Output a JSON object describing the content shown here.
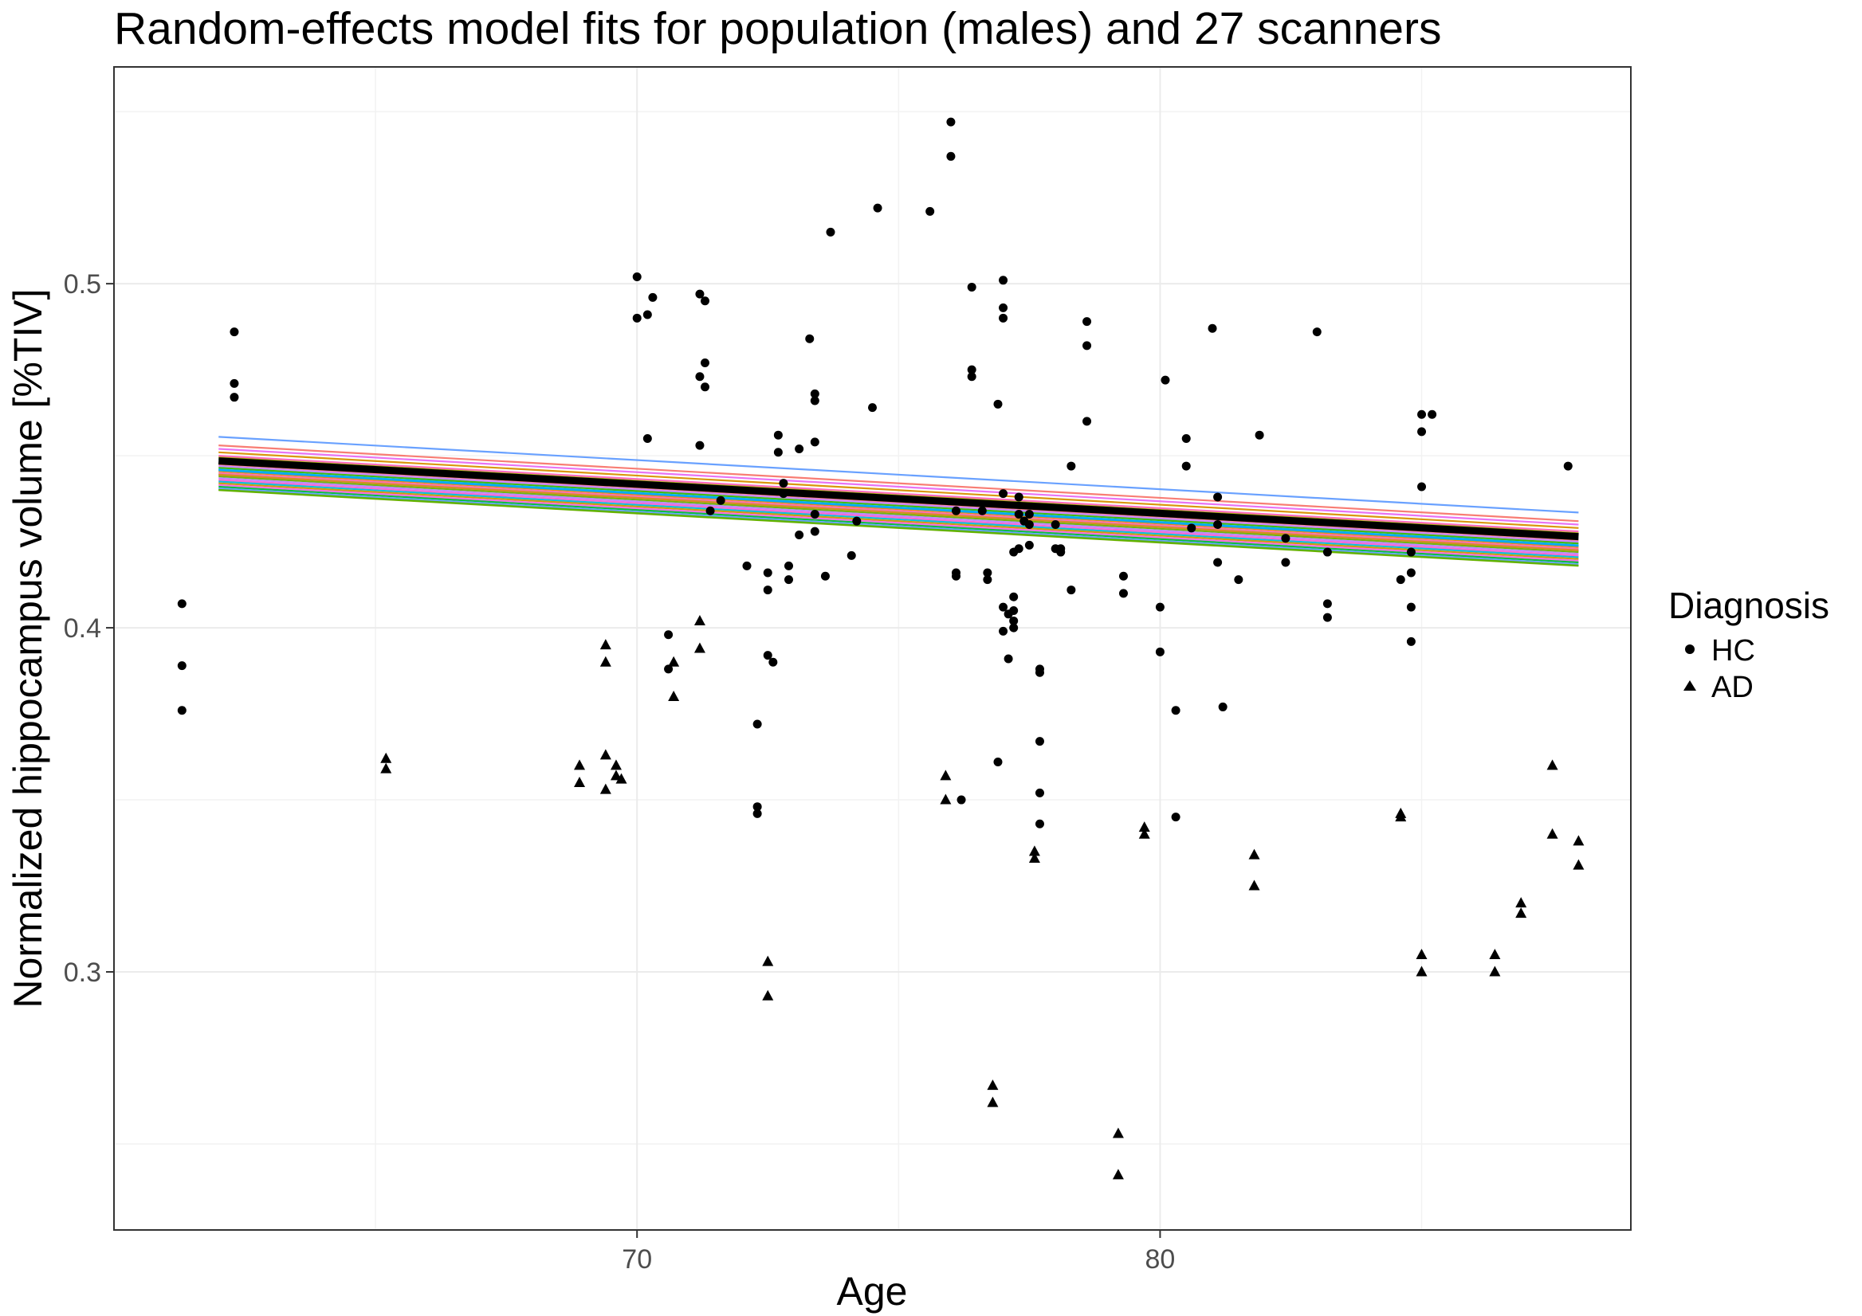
{
  "chart_data": {
    "type": "scatter",
    "title": "Random-effects model fits for population (males) and 27 scanners",
    "xlabel": "Age",
    "ylabel": "Normalized hippocampus volume [%TIV]",
    "xlim": [
      60,
      89
    ],
    "ylim": [
      0.225,
      0.563
    ],
    "x_ticks": [
      70,
      80
    ],
    "x_tick_labels": [
      "70",
      "80"
    ],
    "y_ticks": [
      0.3,
      0.4,
      0.5
    ],
    "y_tick_labels": [
      "0.3",
      "0.4",
      "0.5"
    ],
    "grid": true,
    "legend": {
      "title": "Diagnosis",
      "position": "right",
      "entries": [
        {
          "label": "HC",
          "shape": "circle"
        },
        {
          "label": "AD",
          "shape": "triangle"
        }
      ]
    },
    "population_fit": {
      "name": "population",
      "color": "#000000",
      "x": [
        62,
        88
      ],
      "y": [
        0.4485,
        0.4265
      ]
    },
    "scanner_fits": [
      {
        "name": "scanner 1",
        "color": "#619CFF",
        "y": [
          0.4555,
          0.4335
        ]
      },
      {
        "name": "scanner 2",
        "color": "#F8766D",
        "y": [
          0.453,
          0.431
        ]
      },
      {
        "name": "scanner 3",
        "color": "#E76BF3",
        "y": [
          0.452,
          0.43
        ]
      },
      {
        "name": "scanner 4",
        "color": "#D89000",
        "y": [
          0.451,
          0.429
        ]
      },
      {
        "name": "scanner 5",
        "color": "#FF62BC",
        "y": [
          0.45,
          0.428
        ]
      },
      {
        "name": "scanner 6",
        "color": "#A3A500",
        "y": [
          0.4495,
          0.4275
        ]
      },
      {
        "name": "scanner 7",
        "color": "#00BF7D",
        "y": [
          0.449,
          0.427
        ]
      },
      {
        "name": "scanner 8",
        "color": "#9590FF",
        "y": [
          0.448,
          0.426
        ]
      },
      {
        "name": "scanner 9",
        "color": "#F8766D",
        "y": [
          0.4475,
          0.4255
        ]
      },
      {
        "name": "scanner 10",
        "color": "#C77CFF",
        "y": [
          0.447,
          0.425
        ]
      },
      {
        "name": "scanner 11",
        "color": "#39B600",
        "y": [
          0.4465,
          0.4245
        ]
      },
      {
        "name": "scanner 12",
        "color": "#00B0F6",
        "y": [
          0.446,
          0.424
        ]
      },
      {
        "name": "scanner 13",
        "color": "#E58700",
        "y": [
          0.4455,
          0.4235
        ]
      },
      {
        "name": "scanner 14",
        "color": "#FF67A4",
        "y": [
          0.445,
          0.423
        ]
      },
      {
        "name": "scanner 15",
        "color": "#00C0AF",
        "y": [
          0.4445,
          0.4225
        ]
      },
      {
        "name": "scanner 16",
        "color": "#6BB100",
        "y": [
          0.444,
          0.422
        ]
      },
      {
        "name": "scanner 17",
        "color": "#B983FF",
        "y": [
          0.4435,
          0.4215
        ]
      },
      {
        "name": "scanner 18",
        "color": "#FD61D1",
        "y": [
          0.443,
          0.421
        ]
      },
      {
        "name": "scanner 19",
        "color": "#00BCD8",
        "y": [
          0.4425,
          0.4205
        ]
      },
      {
        "name": "scanner 20",
        "color": "#C99800",
        "y": [
          0.442,
          0.42
        ]
      },
      {
        "name": "scanner 21",
        "color": "#F564E3",
        "y": [
          0.4415,
          0.4195
        ]
      },
      {
        "name": "scanner 22",
        "color": "#00BA38",
        "y": [
          0.441,
          0.419
        ]
      },
      {
        "name": "scanner 23",
        "color": "#619CFF",
        "y": [
          0.4405,
          0.4185
        ]
      },
      {
        "name": "scanner 24",
        "color": "#7CAE00",
        "y": [
          0.44,
          0.418
        ]
      },
      {
        "name": "scanner 25",
        "color": "#E7861B",
        "y": [
          0.4445,
          0.4225
        ]
      },
      {
        "name": "scanner 26",
        "color": "#00A9FF",
        "y": [
          0.4458,
          0.4238
        ]
      },
      {
        "name": "scanner 27",
        "color": "#5BB300",
        "y": [
          0.4401,
          0.4181
        ]
      }
    ],
    "series": [
      {
        "name": "HC",
        "shape": "circle",
        "points": [
          [
            61.3,
            0.407
          ],
          [
            61.3,
            0.389
          ],
          [
            61.3,
            0.376
          ],
          [
            62.3,
            0.486
          ],
          [
            62.3,
            0.471
          ],
          [
            62.3,
            0.467
          ],
          [
            70.0,
            0.502
          ],
          [
            70.0,
            0.49
          ],
          [
            70.2,
            0.491
          ],
          [
            70.3,
            0.496
          ],
          [
            70.2,
            0.455
          ],
          [
            70.6,
            0.398
          ],
          [
            70.6,
            0.388
          ],
          [
            71.2,
            0.497
          ],
          [
            71.3,
            0.495
          ],
          [
            71.3,
            0.477
          ],
          [
            71.2,
            0.473
          ],
          [
            71.3,
            0.47
          ],
          [
            71.2,
            0.453
          ],
          [
            71.4,
            0.434
          ],
          [
            71.6,
            0.437
          ],
          [
            72.1,
            0.418
          ],
          [
            72.3,
            0.372
          ],
          [
            72.3,
            0.348
          ],
          [
            72.3,
            0.346
          ],
          [
            72.5,
            0.392
          ],
          [
            72.6,
            0.39
          ],
          [
            72.5,
            0.416
          ],
          [
            72.5,
            0.411
          ],
          [
            72.7,
            0.456
          ],
          [
            72.7,
            0.451
          ],
          [
            72.8,
            0.442
          ],
          [
            72.8,
            0.439
          ],
          [
            72.9,
            0.418
          ],
          [
            72.9,
            0.414
          ],
          [
            73.1,
            0.427
          ],
          [
            73.1,
            0.452
          ],
          [
            73.3,
            0.484
          ],
          [
            73.4,
            0.468
          ],
          [
            73.4,
            0.466
          ],
          [
            73.4,
            0.454
          ],
          [
            73.4,
            0.433
          ],
          [
            73.4,
            0.428
          ],
          [
            73.6,
            0.415
          ],
          [
            73.7,
            0.515
          ],
          [
            74.1,
            0.421
          ],
          [
            74.2,
            0.431
          ],
          [
            74.5,
            0.464
          ],
          [
            74.6,
            0.522
          ],
          [
            75.6,
            0.521
          ],
          [
            76.0,
            0.547
          ],
          [
            76.0,
            0.537
          ],
          [
            76.1,
            0.434
          ],
          [
            76.1,
            0.416
          ],
          [
            76.1,
            0.415
          ],
          [
            76.2,
            0.35
          ],
          [
            76.4,
            0.499
          ],
          [
            76.4,
            0.475
          ],
          [
            76.4,
            0.473
          ],
          [
            76.6,
            0.434
          ],
          [
            76.7,
            0.416
          ],
          [
            76.7,
            0.414
          ],
          [
            76.9,
            0.465
          ],
          [
            76.9,
            0.361
          ],
          [
            77.0,
            0.501
          ],
          [
            77.0,
            0.493
          ],
          [
            77.0,
            0.49
          ],
          [
            77.0,
            0.439
          ],
          [
            77.0,
            0.406
          ],
          [
            77.0,
            0.399
          ],
          [
            77.1,
            0.391
          ],
          [
            77.1,
            0.404
          ],
          [
            77.2,
            0.409
          ],
          [
            77.2,
            0.405
          ],
          [
            77.2,
            0.402
          ],
          [
            77.2,
            0.4
          ],
          [
            77.2,
            0.422
          ],
          [
            77.3,
            0.423
          ],
          [
            77.3,
            0.438
          ],
          [
            77.3,
            0.433
          ],
          [
            77.4,
            0.431
          ],
          [
            77.5,
            0.433
          ],
          [
            77.5,
            0.43
          ],
          [
            77.5,
            0.424
          ],
          [
            77.7,
            0.388
          ],
          [
            77.7,
            0.387
          ],
          [
            77.7,
            0.367
          ],
          [
            77.7,
            0.352
          ],
          [
            77.7,
            0.343
          ],
          [
            78.0,
            0.423
          ],
          [
            78.1,
            0.423
          ],
          [
            78.1,
            0.422
          ],
          [
            78.0,
            0.43
          ],
          [
            78.3,
            0.447
          ],
          [
            78.3,
            0.411
          ],
          [
            78.6,
            0.489
          ],
          [
            78.6,
            0.482
          ],
          [
            78.6,
            0.46
          ],
          [
            79.3,
            0.415
          ],
          [
            79.3,
            0.41
          ],
          [
            80.0,
            0.406
          ],
          [
            80.0,
            0.393
          ],
          [
            80.1,
            0.472
          ],
          [
            80.3,
            0.376
          ],
          [
            80.3,
            0.345
          ],
          [
            80.5,
            0.455
          ],
          [
            80.5,
            0.447
          ],
          [
            80.6,
            0.429
          ],
          [
            81.0,
            0.487
          ],
          [
            81.1,
            0.438
          ],
          [
            81.1,
            0.43
          ],
          [
            81.1,
            0.419
          ],
          [
            81.2,
            0.377
          ],
          [
            81.5,
            0.414
          ],
          [
            81.9,
            0.456
          ],
          [
            82.4,
            0.426
          ],
          [
            82.4,
            0.419
          ],
          [
            83.0,
            0.486
          ],
          [
            83.2,
            0.422
          ],
          [
            83.2,
            0.407
          ],
          [
            83.2,
            0.403
          ],
          [
            84.6,
            0.414
          ],
          [
            84.8,
            0.422
          ],
          [
            84.8,
            0.416
          ],
          [
            84.8,
            0.406
          ],
          [
            84.8,
            0.396
          ],
          [
            85.0,
            0.462
          ],
          [
            85.0,
            0.457
          ],
          [
            85.0,
            0.441
          ],
          [
            85.2,
            0.462
          ],
          [
            87.8,
            0.447
          ]
        ]
      },
      {
        "name": "AD",
        "shape": "triangle",
        "points": [
          [
            65.2,
            0.362
          ],
          [
            65.2,
            0.359
          ],
          [
            68.9,
            0.36
          ],
          [
            68.9,
            0.355
          ],
          [
            69.4,
            0.395
          ],
          [
            69.4,
            0.39
          ],
          [
            69.4,
            0.363
          ],
          [
            69.4,
            0.353
          ],
          [
            69.6,
            0.36
          ],
          [
            69.6,
            0.357
          ],
          [
            69.7,
            0.356
          ],
          [
            70.7,
            0.39
          ],
          [
            70.7,
            0.38
          ],
          [
            71.2,
            0.402
          ],
          [
            71.2,
            0.394
          ],
          [
            72.5,
            0.303
          ],
          [
            72.5,
            0.293
          ],
          [
            75.9,
            0.357
          ],
          [
            75.9,
            0.35
          ],
          [
            76.8,
            0.267
          ],
          [
            76.8,
            0.262
          ],
          [
            77.6,
            0.335
          ],
          [
            77.6,
            0.333
          ],
          [
            79.2,
            0.253
          ],
          [
            79.2,
            0.241
          ],
          [
            79.7,
            0.342
          ],
          [
            79.7,
            0.34
          ],
          [
            81.8,
            0.334
          ],
          [
            81.8,
            0.325
          ],
          [
            84.6,
            0.346
          ],
          [
            84.6,
            0.345
          ],
          [
            85.0,
            0.305
          ],
          [
            85.0,
            0.3
          ],
          [
            86.4,
            0.305
          ],
          [
            86.4,
            0.3
          ],
          [
            86.9,
            0.32
          ],
          [
            86.9,
            0.317
          ],
          [
            87.5,
            0.36
          ],
          [
            87.5,
            0.34
          ],
          [
            88.0,
            0.338
          ],
          [
            88.0,
            0.331
          ]
        ]
      }
    ]
  }
}
